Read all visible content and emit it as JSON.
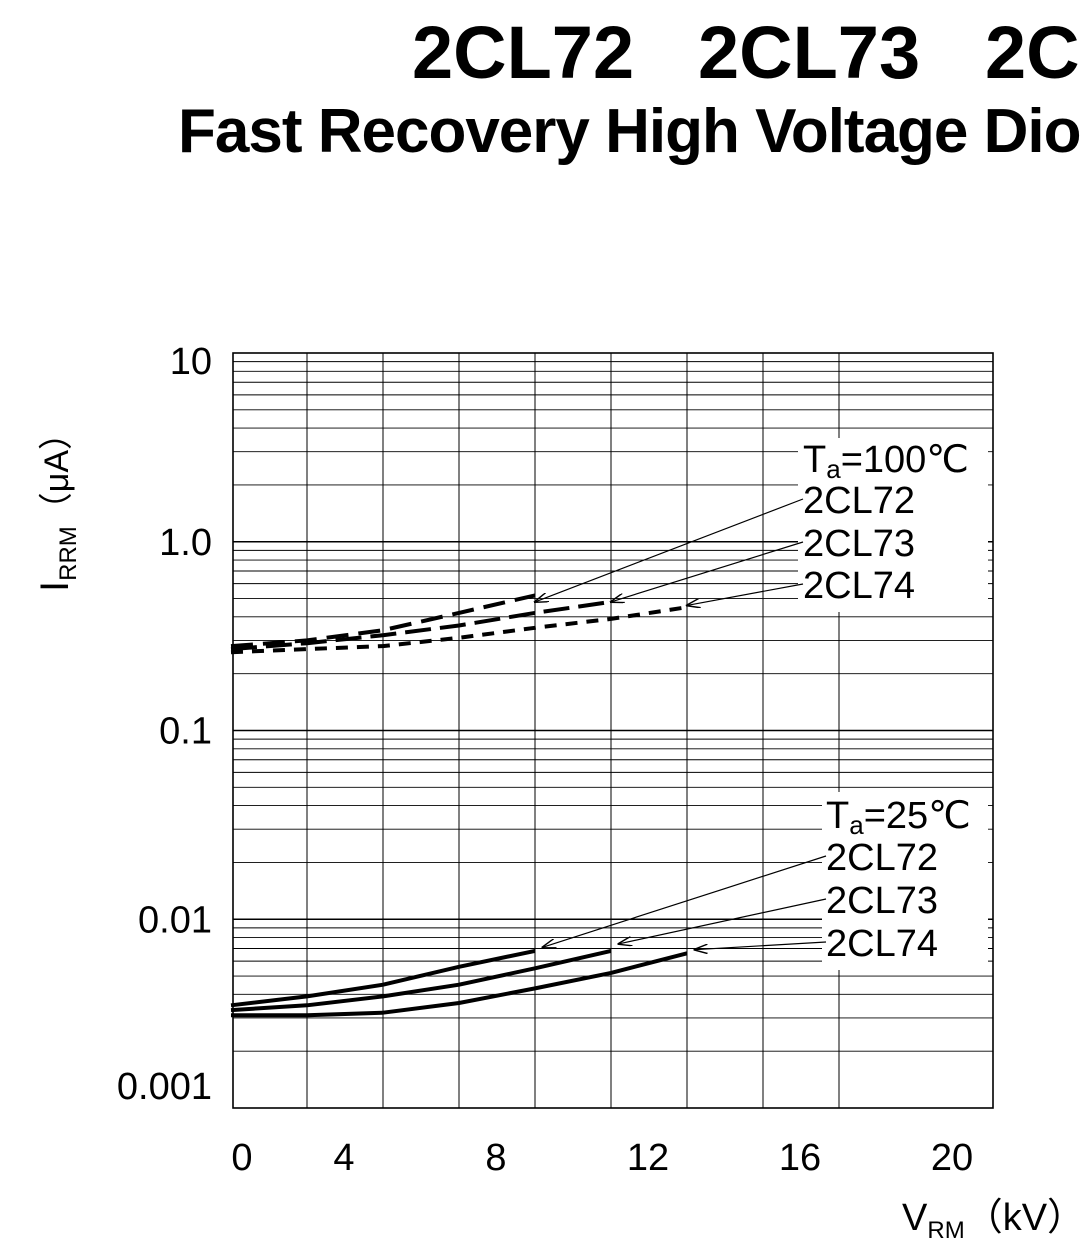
{
  "header": {
    "models": [
      "2CL72",
      "2CL73",
      "2C"
    ],
    "subtitle": "Fast Recovery High Voltage Dio"
  },
  "chart_data": {
    "type": "line",
    "title": "",
    "x_axis": {
      "label_main": "V",
      "label_sub": "RM",
      "label_unit": "（kV）",
      "min": 0,
      "max": 20,
      "ticks": [
        0,
        4,
        8,
        12,
        16,
        20
      ],
      "tick_labels": [
        "0",
        "4",
        "8",
        "12",
        "16",
        "20"
      ],
      "grid_step": 2
    },
    "y_axis": {
      "label_main": "I",
      "label_sub": "RRM",
      "label_unit": "（μA）",
      "scale": "log",
      "min": 0.001,
      "max": 10,
      "ticks": [
        0.001,
        0.01,
        0.1,
        1.0,
        10
      ],
      "tick_labels": [
        "0.001",
        "0.01",
        "0.1",
        "1.0",
        "10"
      ]
    },
    "grid": true,
    "groups": [
      {
        "condition_main": "T",
        "condition_sub": "a",
        "condition_rest": "=100℃",
        "line_style": "dashed",
        "series": [
          {
            "name": "2CL72",
            "x": [
              2,
              4,
              6,
              8,
              10
            ],
            "y": [
              0.28,
              0.3,
              0.34,
              0.42,
              0.52
            ],
            "label_arrow_to": [
              10,
              0.48
            ]
          },
          {
            "name": "2CL73",
            "x": [
              2,
              4,
              6,
              8,
              10,
              12
            ],
            "y": [
              0.27,
              0.29,
              0.32,
              0.36,
              0.42,
              0.48
            ],
            "label_arrow_to": [
              12,
              0.48
            ]
          },
          {
            "name": "2CL74",
            "x": [
              2,
              4,
              6,
              8,
              10,
              12,
              14
            ],
            "y": [
              0.26,
              0.27,
              0.28,
              0.31,
              0.35,
              0.39,
              0.45
            ],
            "label_arrow_to": [
              14,
              0.46
            ]
          }
        ]
      },
      {
        "condition_main": "T",
        "condition_sub": "a",
        "condition_rest": "=25℃",
        "line_style": "solid",
        "series": [
          {
            "name": "2CL72",
            "x": [
              2,
              4,
              6,
              8,
              10
            ],
            "y": [
              0.0035,
              0.0039,
              0.0045,
              0.0056,
              0.0068
            ],
            "label_arrow_to": [
              10.2,
              0.0071
            ]
          },
          {
            "name": "2CL73",
            "x": [
              2,
              4,
              6,
              8,
              10,
              12
            ],
            "y": [
              0.0033,
              0.0035,
              0.0039,
              0.0045,
              0.0055,
              0.0068
            ],
            "label_arrow_to": [
              12.2,
              0.0074
            ]
          },
          {
            "name": "2CL74",
            "x": [
              2,
              4,
              6,
              8,
              10,
              12,
              14
            ],
            "y": [
              0.0031,
              0.0031,
              0.0032,
              0.0036,
              0.0043,
              0.0052,
              0.0066
            ],
            "label_arrow_to": [
              14.2,
              0.0069
            ]
          }
        ]
      }
    ]
  }
}
